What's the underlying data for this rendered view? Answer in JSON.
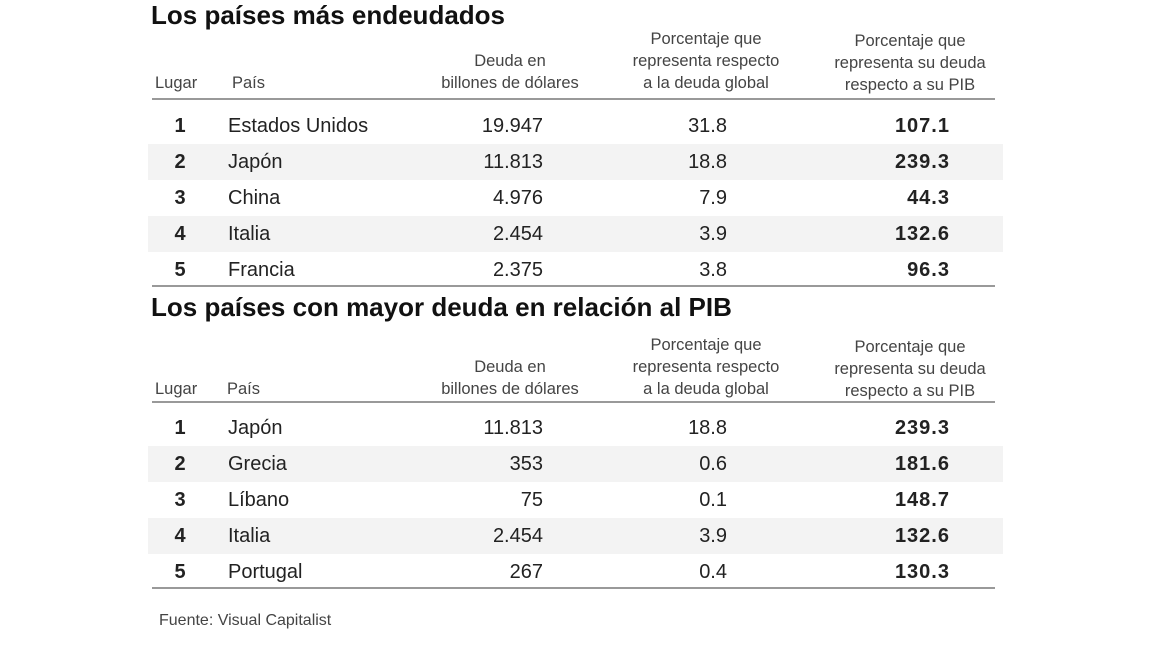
{
  "headers": {
    "lugar": "Lugar",
    "pais": "País",
    "deuda": [
      "Deuda en",
      "billones de dólares"
    ],
    "global": [
      "Porcentaje que",
      "representa respecto",
      "a la deuda global"
    ],
    "pib": [
      "Porcentaje que",
      "representa su deuda",
      "respecto a su PIB"
    ]
  },
  "tables": [
    {
      "title": "Los países más endeudados",
      "rows": [
        {
          "lugar": "1",
          "pais": "Estados Unidos",
          "deuda": "19.947",
          "global": "31.8",
          "pib": "107.1"
        },
        {
          "lugar": "2",
          "pais": "Japón",
          "deuda": "11.813",
          "global": "18.8",
          "pib": "239.3"
        },
        {
          "lugar": "3",
          "pais": "China",
          "deuda": "4.976",
          "global": "7.9",
          "pib": "44.3"
        },
        {
          "lugar": "4",
          "pais": "Italia",
          "deuda": "2.454",
          "global": "3.9",
          "pib": "132.6"
        },
        {
          "lugar": "5",
          "pais": "Francia",
          "deuda": "2.375",
          "global": "3.8",
          "pib": "96.3"
        }
      ]
    },
    {
      "title": "Los países con mayor deuda en relación al PIB",
      "rows": [
        {
          "lugar": "1",
          "pais": "Japón",
          "deuda": "11.813",
          "global": "18.8",
          "pib": "239.3"
        },
        {
          "lugar": "2",
          "pais": "Grecia",
          "deuda": "353",
          "global": "0.6",
          "pib": "181.6"
        },
        {
          "lugar": "3",
          "pais": "Líbano",
          "deuda": "75",
          "global": "0.1",
          "pib": "148.7"
        },
        {
          "lugar": "4",
          "pais": "Italia",
          "deuda": "2.454",
          "global": "3.9",
          "pib": "132.6"
        },
        {
          "lugar": "5",
          "pais": "Portugal",
          "deuda": "267",
          "global": "0.4",
          "pib": "130.3"
        }
      ]
    }
  ],
  "source": "Fuente: Visual Capitalist",
  "colors": {
    "alt_row": "#f3f3f3",
    "rule": "#999999"
  }
}
